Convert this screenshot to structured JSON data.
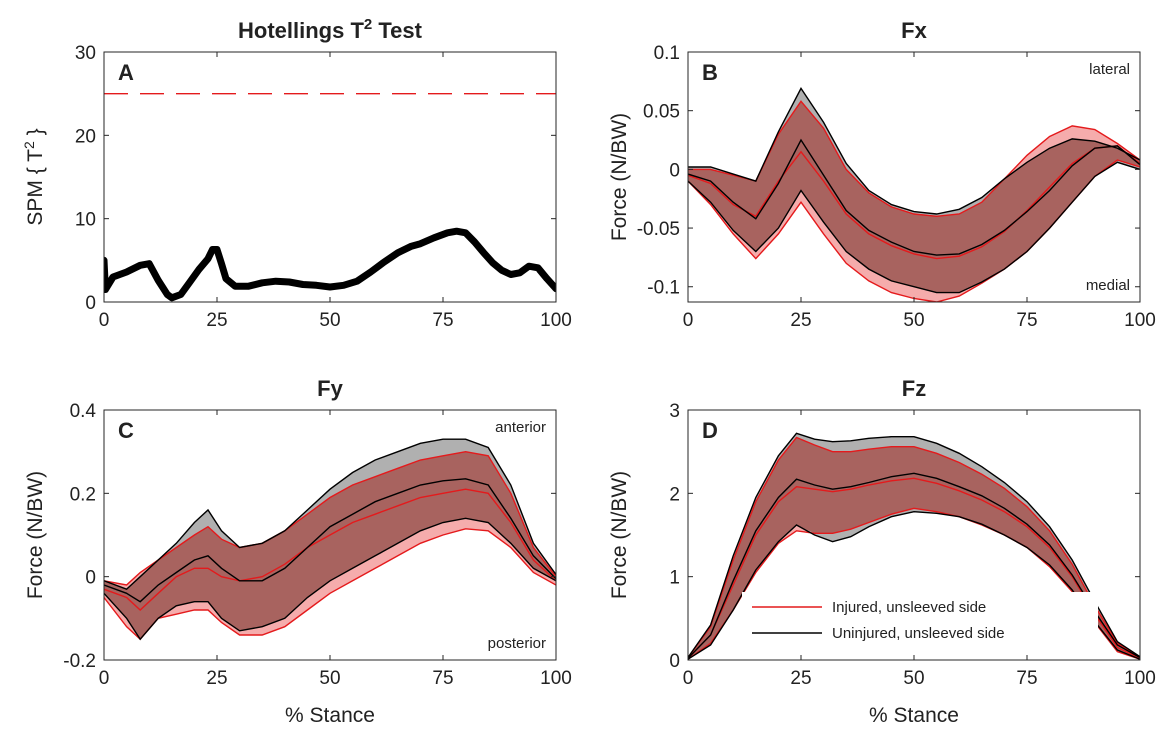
{
  "colors": {
    "injured": "#e41a1c",
    "uninjured": "#000000",
    "injured_fill": "#f4a3a3",
    "uninjured_fill": "#b0b0b0",
    "overlap_fill": "#a8635f",
    "threshold": "#e41a1c"
  },
  "legend": {
    "injured": "Injured, unsleeved side",
    "uninjured": "Uninjured, unsleeved side"
  },
  "chart_data": [
    {
      "panel": "A",
      "type": "line",
      "title": "Hotellings T",
      "title_sup": "2",
      "title_suffix": " Test",
      "ylabel_pre": "SPM { T",
      "ylabel_sup": "2",
      "ylabel_post": " }",
      "xlabel": "",
      "xlim": [
        0,
        100
      ],
      "ylim": [
        0,
        30
      ],
      "xticks": [
        "0",
        "25",
        "50",
        "75",
        "100"
      ],
      "yticks": [
        "0",
        "10",
        "20",
        "30"
      ],
      "threshold": 25,
      "series": [
        {
          "x": [
            0,
            0.3,
            2,
            5,
            8,
            10,
            12,
            14,
            15,
            17,
            19,
            21,
            23,
            24,
            25,
            26,
            27,
            29,
            32,
            35,
            38,
            41,
            44,
            47,
            50,
            53,
            56,
            59,
            62,
            65,
            68,
            70,
            73,
            76,
            78,
            80,
            82,
            84,
            86,
            88,
            90,
            92,
            94,
            96,
            98,
            100
          ],
          "y": [
            5,
            1.5,
            3,
            3.6,
            4.4,
            4.6,
            2.6,
            0.9,
            0.5,
            0.9,
            2.4,
            3.9,
            5.2,
            6.3,
            6.3,
            4.6,
            2.8,
            1.9,
            1.9,
            2.3,
            2.5,
            2.4,
            2.1,
            2.0,
            1.8,
            2.0,
            2.5,
            3.6,
            4.8,
            5.9,
            6.7,
            7.0,
            7.7,
            8.3,
            8.5,
            8.3,
            7.2,
            5.9,
            4.7,
            3.8,
            3.3,
            3.5,
            4.3,
            4.1,
            2.8,
            1.6
          ]
        }
      ]
    },
    {
      "panel": "B",
      "type": "area",
      "title": "Fx",
      "ylabel": "Force (N/BW)",
      "xlabel": "",
      "xlim": [
        0,
        100
      ],
      "ylim": [
        -0.113,
        0.1
      ],
      "xticks": [
        "0",
        "25",
        "50",
        "75",
        "100"
      ],
      "yticks": [
        "-0.1",
        "-0.05",
        "0",
        "0.05",
        "0.1"
      ],
      "annotations": [
        "lateral",
        "medial"
      ],
      "x": [
        0,
        5,
        10,
        15,
        20,
        25,
        30,
        35,
        40,
        45,
        50,
        55,
        60,
        65,
        70,
        75,
        80,
        85,
        90,
        95,
        100
      ],
      "series": [
        {
          "name": "Injured, unsleeved side",
          "mean": [
            -0.005,
            -0.012,
            -0.03,
            -0.04,
            -0.01,
            0.015,
            -0.01,
            -0.038,
            -0.055,
            -0.065,
            -0.072,
            -0.076,
            -0.074,
            -0.066,
            -0.053,
            -0.035,
            -0.015,
            0.005,
            0.018,
            0.02,
            0.005
          ],
          "upper": [
            0,
            0.0,
            -0.005,
            -0.01,
            0.03,
            0.058,
            0.035,
            0.0,
            -0.02,
            -0.032,
            -0.038,
            -0.04,
            -0.038,
            -0.028,
            -0.008,
            0.012,
            0.028,
            0.037,
            0.034,
            0.022,
            0.008
          ],
          "lower": [
            -0.01,
            -0.03,
            -0.055,
            -0.076,
            -0.055,
            -0.028,
            -0.055,
            -0.08,
            -0.095,
            -0.105,
            -0.11,
            -0.113,
            -0.108,
            -0.097,
            -0.085,
            -0.07,
            -0.05,
            -0.028,
            -0.006,
            0.008,
            0.002
          ]
        },
        {
          "name": "Uninjured, unsleeved side",
          "mean": [
            -0.004,
            -0.01,
            -0.028,
            -0.042,
            -0.012,
            0.025,
            -0.005,
            -0.035,
            -0.052,
            -0.062,
            -0.07,
            -0.073,
            -0.072,
            -0.064,
            -0.052,
            -0.036,
            -0.018,
            0.003,
            0.018,
            0.02,
            0.004
          ],
          "upper": [
            0.002,
            0.002,
            -0.004,
            -0.01,
            0.032,
            0.069,
            0.04,
            0.005,
            -0.018,
            -0.03,
            -0.036,
            -0.038,
            -0.034,
            -0.024,
            -0.008,
            0.006,
            0.018,
            0.026,
            0.024,
            0.018,
            0.008
          ],
          "lower": [
            -0.01,
            -0.028,
            -0.052,
            -0.07,
            -0.05,
            -0.018,
            -0.045,
            -0.07,
            -0.085,
            -0.095,
            -0.1,
            -0.105,
            -0.105,
            -0.096,
            -0.085,
            -0.07,
            -0.05,
            -0.028,
            -0.006,
            0.006,
            0.0
          ]
        }
      ]
    },
    {
      "panel": "C",
      "type": "area",
      "title": "Fy",
      "ylabel": "Force (N/BW)",
      "xlabel": "% Stance",
      "xlim": [
        0,
        100
      ],
      "ylim": [
        -0.2,
        0.4
      ],
      "xticks": [
        "0",
        "25",
        "50",
        "75",
        "100"
      ],
      "yticks": [
        "-0.2",
        "0",
        "0.2",
        "0.4"
      ],
      "annotations": [
        "anterior",
        "posterior"
      ],
      "x": [
        0,
        5,
        8,
        12,
        16,
        20,
        23,
        26,
        30,
        35,
        40,
        45,
        50,
        55,
        60,
        65,
        70,
        75,
        80,
        85,
        90,
        95,
        100
      ],
      "series": [
        {
          "name": "Injured, unsleeved side",
          "mean": [
            -0.03,
            -0.05,
            -0.08,
            -0.04,
            0.0,
            0.02,
            0.02,
            0.0,
            -0.01,
            0.0,
            0.03,
            0.07,
            0.1,
            0.13,
            0.15,
            0.17,
            0.19,
            0.2,
            0.21,
            0.2,
            0.13,
            0.04,
            -0.01
          ],
          "upper": [
            -0.01,
            -0.02,
            0.01,
            0.04,
            0.07,
            0.1,
            0.12,
            0.09,
            0.07,
            0.08,
            0.11,
            0.15,
            0.19,
            0.22,
            0.24,
            0.26,
            0.28,
            0.29,
            0.3,
            0.29,
            0.2,
            0.07,
            0.0
          ],
          "lower": [
            -0.05,
            -0.12,
            -0.15,
            -0.1,
            -0.09,
            -0.08,
            -0.08,
            -0.11,
            -0.14,
            -0.14,
            -0.12,
            -0.08,
            -0.04,
            -0.01,
            0.02,
            0.05,
            0.08,
            0.1,
            0.115,
            0.11,
            0.07,
            0.01,
            -0.02
          ]
        },
        {
          "name": "Uninjured, unsleeved side",
          "mean": [
            -0.02,
            -0.04,
            -0.06,
            -0.02,
            0.01,
            0.04,
            0.05,
            0.02,
            -0.01,
            -0.01,
            0.02,
            0.07,
            0.12,
            0.15,
            0.18,
            0.2,
            0.22,
            0.23,
            0.235,
            0.22,
            0.14,
            0.05,
            -0.005
          ],
          "upper": [
            -0.01,
            -0.03,
            0.0,
            0.04,
            0.08,
            0.13,
            0.16,
            0.11,
            0.07,
            0.08,
            0.11,
            0.16,
            0.21,
            0.25,
            0.28,
            0.3,
            0.32,
            0.33,
            0.33,
            0.31,
            0.22,
            0.08,
            0.005
          ],
          "lower": [
            -0.04,
            -0.1,
            -0.15,
            -0.1,
            -0.07,
            -0.06,
            -0.06,
            -0.1,
            -0.13,
            -0.12,
            -0.1,
            -0.05,
            -0.01,
            0.02,
            0.05,
            0.08,
            0.11,
            0.13,
            0.14,
            0.13,
            0.08,
            0.02,
            -0.01
          ]
        }
      ]
    },
    {
      "panel": "D",
      "type": "area",
      "title": "Fz",
      "ylabel": "Force (N/BW)",
      "xlabel": "% Stance",
      "xlim": [
        0,
        100
      ],
      "ylim": [
        0,
        3
      ],
      "xticks": [
        "0",
        "25",
        "50",
        "75",
        "100"
      ],
      "yticks": [
        "0",
        "1",
        "2",
        "3"
      ],
      "legend_position": "lower-center",
      "x": [
        0,
        5,
        10,
        15,
        20,
        24,
        28,
        32,
        36,
        40,
        45,
        50,
        55,
        60,
        65,
        70,
        75,
        80,
        85,
        90,
        95,
        100
      ],
      "series": [
        {
          "name": "Injured, unsleeved side",
          "mean": [
            0.02,
            0.3,
            0.9,
            1.5,
            1.9,
            2.08,
            2.05,
            2.02,
            2.05,
            2.1,
            2.15,
            2.18,
            2.12,
            2.03,
            1.92,
            1.78,
            1.6,
            1.35,
            1.0,
            0.55,
            0.15,
            0.02
          ],
          "upper": [
            0.03,
            0.4,
            1.2,
            1.9,
            2.4,
            2.67,
            2.58,
            2.5,
            2.5,
            2.53,
            2.56,
            2.56,
            2.48,
            2.37,
            2.23,
            2.06,
            1.84,
            1.55,
            1.15,
            0.65,
            0.2,
            0.03
          ],
          "lower": [
            0.01,
            0.2,
            0.6,
            1.05,
            1.4,
            1.55,
            1.52,
            1.52,
            1.57,
            1.65,
            1.75,
            1.82,
            1.78,
            1.72,
            1.62,
            1.5,
            1.35,
            1.12,
            0.82,
            0.45,
            0.1,
            0.01
          ]
        },
        {
          "name": "Uninjured, unsleeved side",
          "mean": [
            0.02,
            0.3,
            0.95,
            1.55,
            1.95,
            2.17,
            2.1,
            2.05,
            2.08,
            2.13,
            2.2,
            2.24,
            2.18,
            2.08,
            1.97,
            1.82,
            1.63,
            1.38,
            1.02,
            0.58,
            0.18,
            0.03
          ],
          "upper": [
            0.03,
            0.42,
            1.25,
            1.95,
            2.45,
            2.72,
            2.65,
            2.62,
            2.63,
            2.66,
            2.68,
            2.68,
            2.6,
            2.48,
            2.32,
            2.13,
            1.9,
            1.6,
            1.2,
            0.7,
            0.22,
            0.04
          ],
          "lower": [
            0.01,
            0.18,
            0.6,
            1.08,
            1.42,
            1.62,
            1.5,
            1.42,
            1.48,
            1.6,
            1.72,
            1.78,
            1.76,
            1.72,
            1.63,
            1.5,
            1.35,
            1.14,
            0.84,
            0.46,
            0.12,
            0.01
          ]
        }
      ]
    }
  ]
}
